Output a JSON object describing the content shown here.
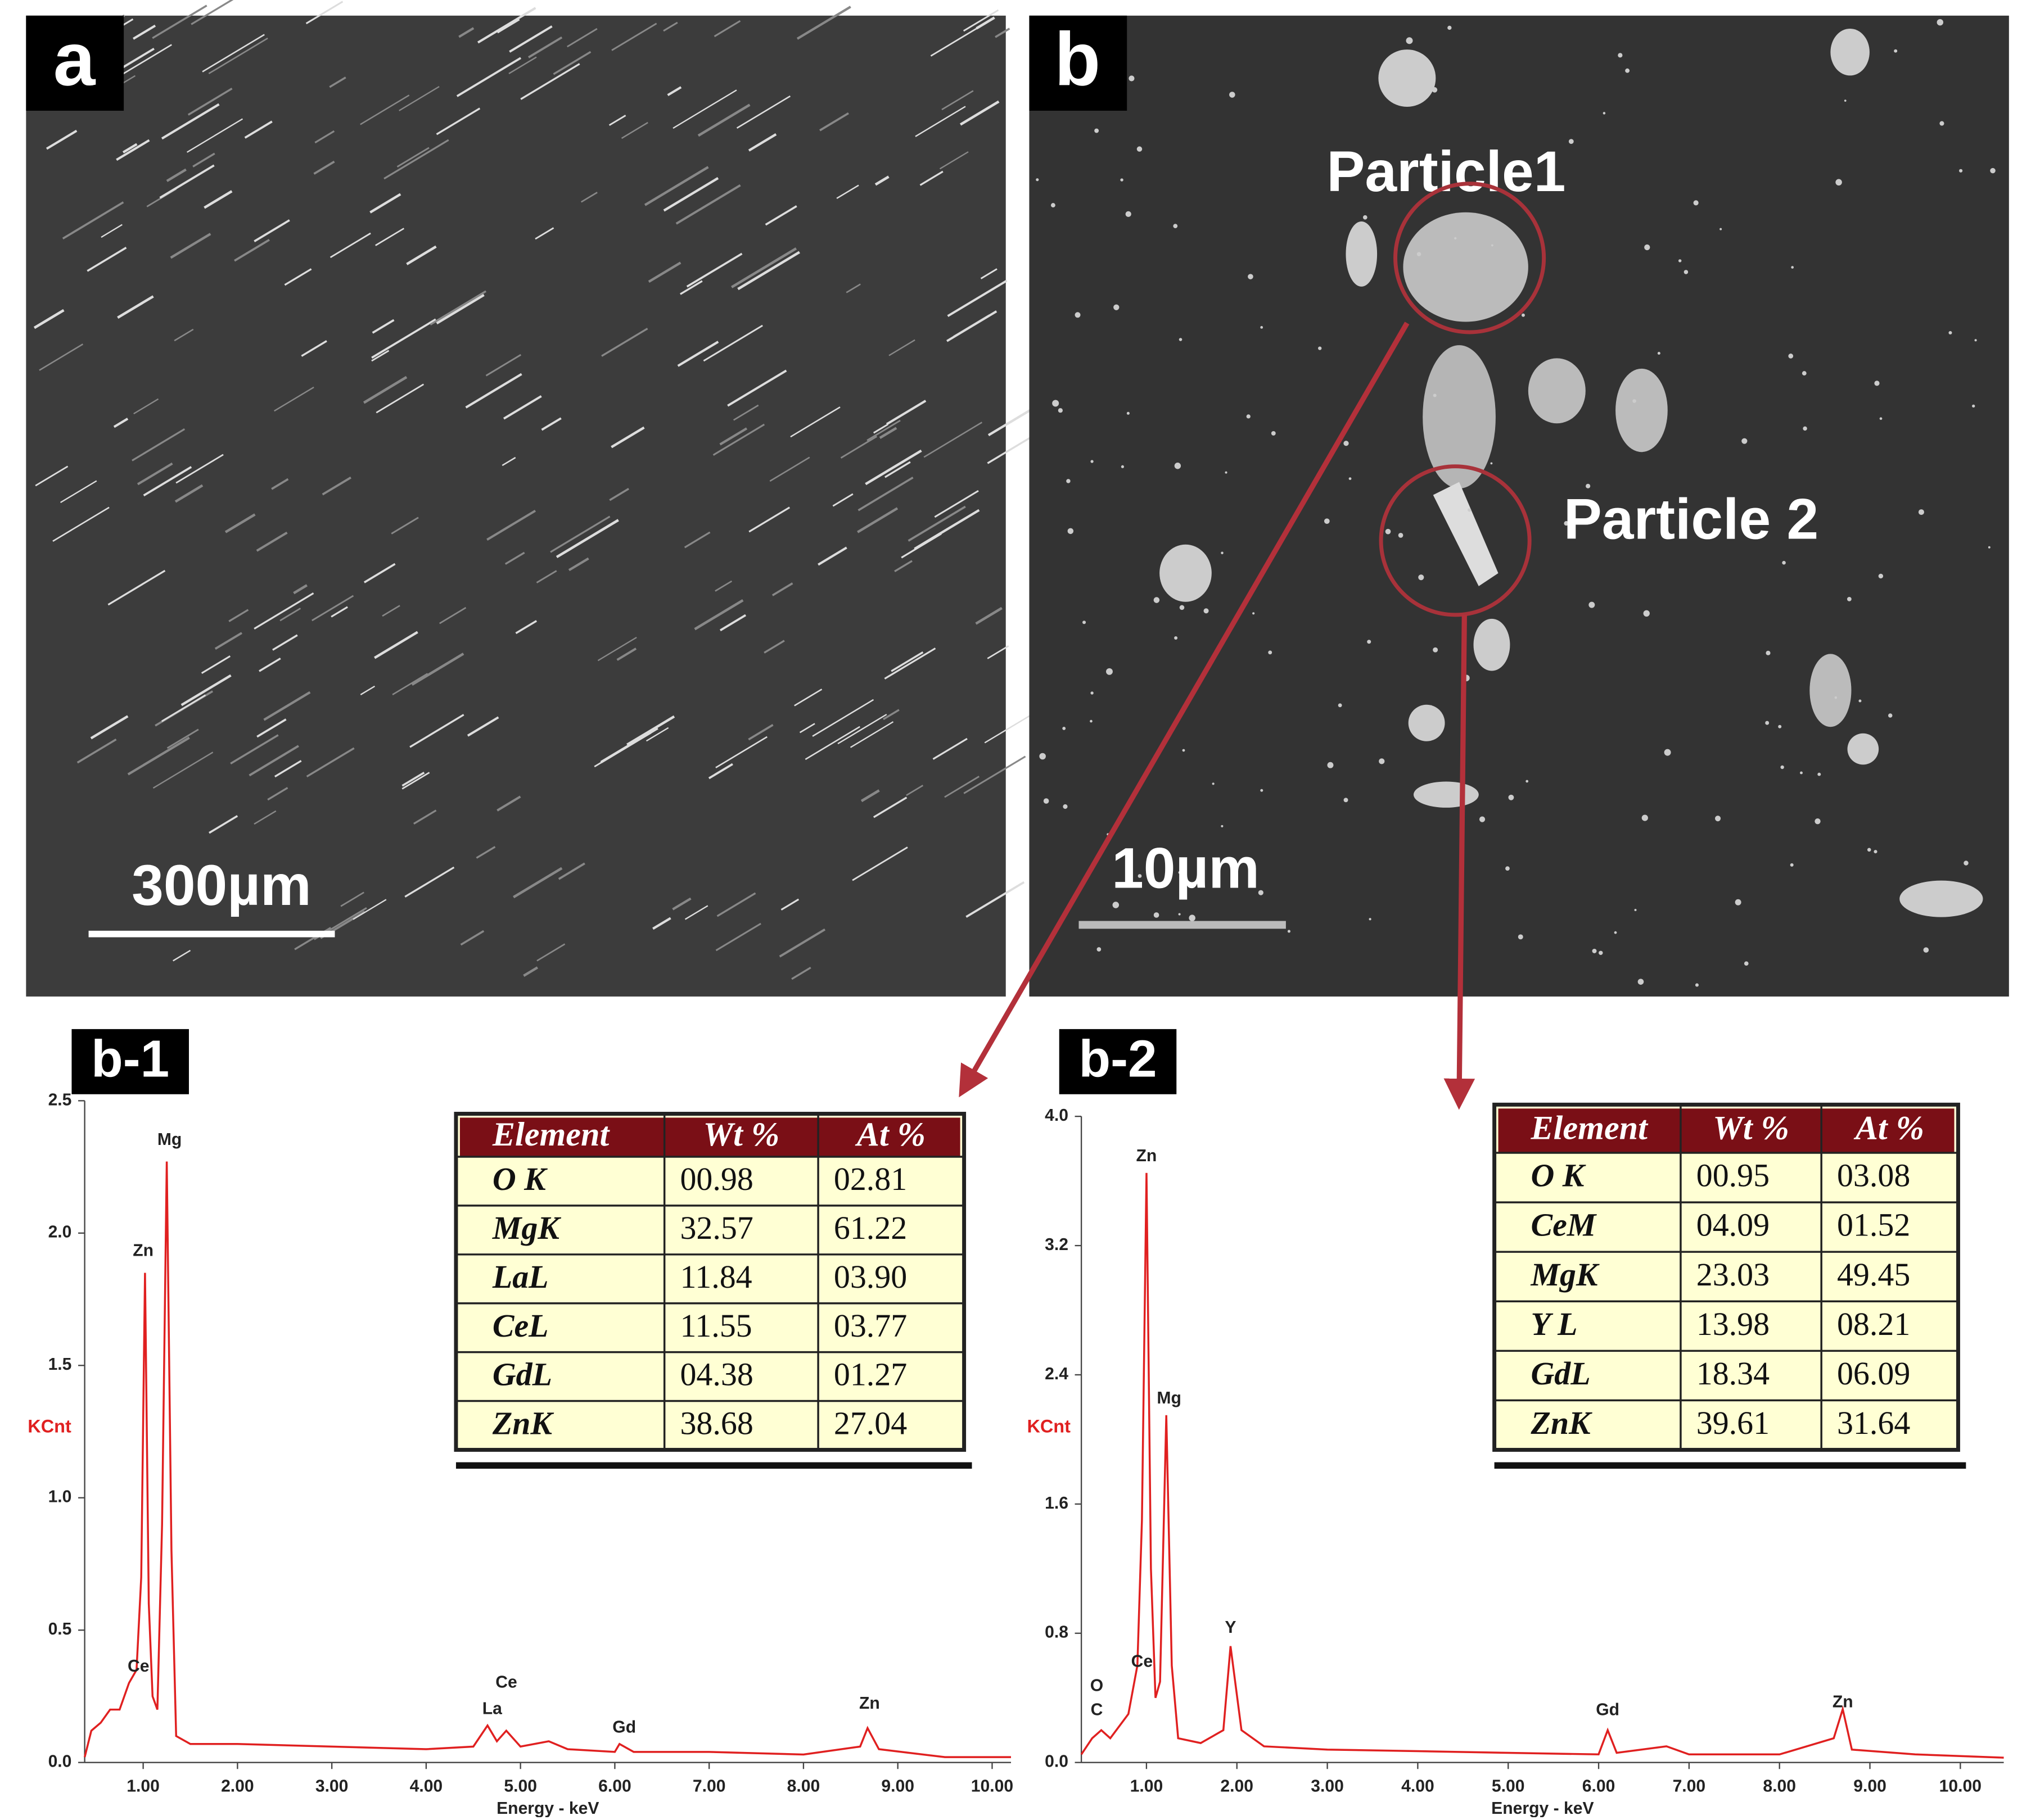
{
  "panels": {
    "a": {
      "label": "a",
      "scale_bar": "300µm"
    },
    "b": {
      "label": "b",
      "scale_bar": "10µm",
      "particle_1": "Particle1",
      "particle_2": "Particle 2"
    }
  },
  "chart_data": [
    {
      "type": "line",
      "title": "b-1",
      "xlabel": "Energy - keV",
      "ylabel": "KCnt",
      "color": "#e02020",
      "xlim": [
        0.38,
        10.2
      ],
      "ylim": [
        0,
        2.5
      ],
      "xticks": [
        {
          "value": 1,
          "label": "1.00"
        },
        {
          "value": 2,
          "label": "2.00"
        },
        {
          "value": 3,
          "label": "3.00"
        },
        {
          "value": 4,
          "label": "4.00"
        },
        {
          "value": 5,
          "label": "5.00"
        },
        {
          "value": 6,
          "label": "6.00"
        },
        {
          "value": 7,
          "label": "7.00"
        },
        {
          "value": 8,
          "label": "8.00"
        },
        {
          "value": 9,
          "label": "9.00"
        },
        {
          "value": 10,
          "label": "10.00"
        }
      ],
      "yticks": [
        {
          "value": 0,
          "label": "0.0"
        },
        0.5,
        {
          "value": 1,
          "label": "1.0"
        },
        1.5,
        {
          "value": 2,
          "label": "2.0"
        },
        2.5
      ],
      "x": [
        0.38,
        0.45,
        0.55,
        0.65,
        0.75,
        0.85,
        0.93,
        0.98,
        1.02,
        1.06,
        1.1,
        1.15,
        1.2,
        1.25,
        1.3,
        1.35,
        1.5,
        2,
        3,
        4,
        4.5,
        4.65,
        4.75,
        4.85,
        5,
        5.3,
        5.5,
        6,
        6.05,
        6.2,
        7,
        8,
        8.6,
        8.68,
        8.8,
        9.5,
        10.2
      ],
      "values": [
        0.02,
        0.12,
        0.15,
        0.2,
        0.2,
        0.3,
        0.35,
        0.7,
        1.85,
        0.6,
        0.25,
        0.2,
        0.9,
        2.27,
        0.8,
        0.1,
        0.07,
        0.07,
        0.06,
        0.05,
        0.06,
        0.14,
        0.08,
        0.12,
        0.06,
        0.08,
        0.05,
        0.04,
        0.07,
        0.04,
        0.04,
        0.03,
        0.06,
        0.13,
        0.05,
        0.02,
        0.02
      ],
      "annotations": [
        "Mg",
        "Zn",
        "Ce",
        "Ce",
        "La",
        "Gd",
        "Zn"
      ]
    },
    {
      "type": "line",
      "title": "b-2",
      "xlabel": "Energy - keV",
      "ylabel": "KCnt",
      "color": "#e02020",
      "xlim": [
        0.28,
        10.48
      ],
      "ylim": [
        0,
        4
      ],
      "xticks": [
        {
          "value": 1,
          "label": "1.00"
        },
        {
          "value": 2,
          "label": "2.00"
        },
        {
          "value": 3,
          "label": "3.00"
        },
        {
          "value": 4,
          "label": "4.00"
        },
        {
          "value": 5,
          "label": "5.00"
        },
        {
          "value": 6,
          "label": "6.00"
        },
        {
          "value": 7,
          "label": "7.00"
        },
        {
          "value": 8,
          "label": "8.00"
        },
        {
          "value": 9,
          "label": "9.00"
        },
        {
          "value": 10,
          "label": "10.00"
        }
      ],
      "yticks": [
        {
          "value": 0,
          "label": "0.0"
        },
        0.8,
        1.6,
        2.4,
        3.2,
        {
          "value": 4,
          "label": "4.0"
        }
      ],
      "x": [
        0.28,
        0.4,
        0.5,
        0.6,
        0.8,
        0.9,
        0.95,
        1.0,
        1.05,
        1.1,
        1.15,
        1.22,
        1.28,
        1.35,
        1.6,
        1.85,
        1.93,
        2.05,
        2.3,
        3,
        4,
        5,
        6,
        6.1,
        6.2,
        6.75,
        7,
        8,
        8.6,
        8.7,
        8.8,
        9.5,
        10.48
      ],
      "values": [
        0.05,
        0.15,
        0.2,
        0.15,
        0.3,
        0.6,
        1.5,
        3.65,
        1.2,
        0.4,
        0.5,
        2.15,
        0.6,
        0.15,
        0.12,
        0.2,
        0.72,
        0.2,
        0.1,
        0.08,
        0.07,
        0.06,
        0.05,
        0.2,
        0.06,
        0.1,
        0.05,
        0.05,
        0.15,
        0.33,
        0.08,
        0.05,
        0.03
      ],
      "annotations": [
        "Zn",
        "Mg",
        "Y",
        "Ce",
        "O",
        "C",
        "Gd",
        "Zn"
      ]
    }
  ],
  "tables": [
    {
      "header": [
        "Element",
        "Wt %",
        "At %"
      ],
      "rows": [
        [
          "O K",
          "00.98",
          "02.81"
        ],
        [
          "MgK",
          "32.57",
          "61.22"
        ],
        [
          "LaL",
          "11.84",
          "03.90"
        ],
        [
          "CeL",
          "11.55",
          "03.77"
        ],
        [
          "GdL",
          "04.38",
          "01.27"
        ],
        [
          "ZnK",
          "38.68",
          "27.04"
        ]
      ]
    },
    {
      "header": [
        "Element",
        "Wt %",
        "At %"
      ],
      "rows": [
        [
          "O K",
          "00.95",
          "03.08"
        ],
        [
          "CeM",
          "04.09",
          "01.52"
        ],
        [
          "MgK",
          "23.03",
          "49.45"
        ],
        [
          "Y L",
          "13.98",
          "08.21"
        ],
        [
          "GdL",
          "18.34",
          "06.09"
        ],
        [
          "ZnK",
          "39.61",
          "31.64"
        ]
      ]
    }
  ]
}
